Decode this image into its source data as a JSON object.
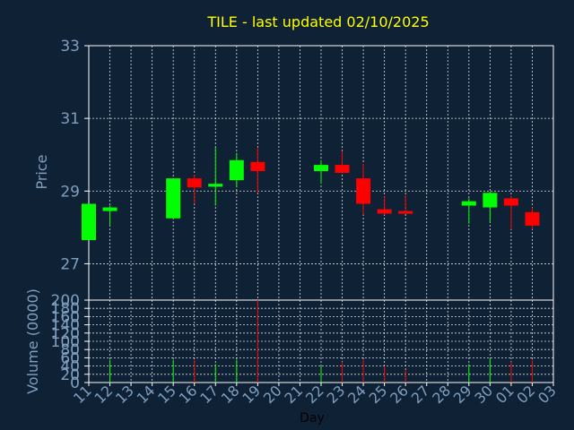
{
  "chart_data": {
    "type": "candlestick",
    "title": "TILE - last updated 02/10/2025",
    "xlabel": "Day",
    "price_panel": {
      "ylabel": "Price",
      "ylim": [
        26,
        33
      ],
      "yticks": [
        27,
        29,
        31,
        33
      ]
    },
    "volume_panel": {
      "ylabel": "Volume (0000)",
      "ylim": [
        0,
        200
      ],
      "yticks": [
        0,
        20,
        40,
        60,
        80,
        100,
        120,
        140,
        160,
        180,
        200
      ]
    },
    "x_ticks": [
      "11",
      "12",
      "13",
      "14",
      "15",
      "16",
      "17",
      "18",
      "19",
      "20",
      "21",
      "22",
      "23",
      "24",
      "25",
      "26",
      "27",
      "28",
      "29",
      "30",
      "01",
      "02",
      "03"
    ],
    "colors": {
      "up": "#00ff00",
      "down": "#ff0000",
      "title": "#ffff00",
      "axis": "#7e9fbf",
      "background": "#0f2135"
    },
    "candles": [
      {
        "day": "11",
        "open": 27.65,
        "high": 28.65,
        "low": 27.65,
        "close": 28.65,
        "volume": 0
      },
      {
        "day": "12",
        "open": 28.45,
        "high": 28.6,
        "low": 28.05,
        "close": 28.55,
        "volume": 55
      },
      {
        "day": "15",
        "open": 28.25,
        "high": 29.35,
        "low": 28.25,
        "close": 29.35,
        "volume": 55
      },
      {
        "day": "16",
        "open": 29.35,
        "high": 29.45,
        "low": 28.65,
        "close": 29.1,
        "volume": 55
      },
      {
        "day": "17",
        "open": 29.12,
        "high": 30.2,
        "low": 28.6,
        "close": 29.2,
        "volume": 45
      },
      {
        "day": "18",
        "open": 29.3,
        "high": 30.05,
        "low": 29.1,
        "close": 29.85,
        "volume": 55
      },
      {
        "day": "19",
        "open": 29.8,
        "high": 30.2,
        "low": 28.95,
        "close": 29.55,
        "volume": 200
      },
      {
        "day": "22",
        "open": 29.55,
        "high": 29.85,
        "low": 29.2,
        "close": 29.72,
        "volume": 40
      },
      {
        "day": "23",
        "open": 29.72,
        "high": 30.1,
        "low": 29.5,
        "close": 29.5,
        "volume": 50
      },
      {
        "day": "24",
        "open": 29.35,
        "high": 29.75,
        "low": 28.35,
        "close": 28.65,
        "volume": 55
      },
      {
        "day": "25",
        "open": 28.5,
        "high": 28.85,
        "low": 28.35,
        "close": 28.38,
        "volume": 40
      },
      {
        "day": "26",
        "open": 28.45,
        "high": 28.9,
        "low": 28.38,
        "close": 28.4,
        "volume": 30
      },
      {
        "day": "29",
        "open": 28.6,
        "high": 28.8,
        "low": 28.1,
        "close": 28.72,
        "volume": 45
      },
      {
        "day": "30",
        "open": 28.55,
        "high": 28.98,
        "low": 28.15,
        "close": 28.95,
        "volume": 60
      },
      {
        "day": "01",
        "open": 28.8,
        "high": 28.85,
        "low": 27.95,
        "close": 28.6,
        "volume": 50
      },
      {
        "day": "02",
        "open": 28.42,
        "high": 28.55,
        "low": 27.95,
        "close": 28.05,
        "volume": 55
      }
    ]
  }
}
